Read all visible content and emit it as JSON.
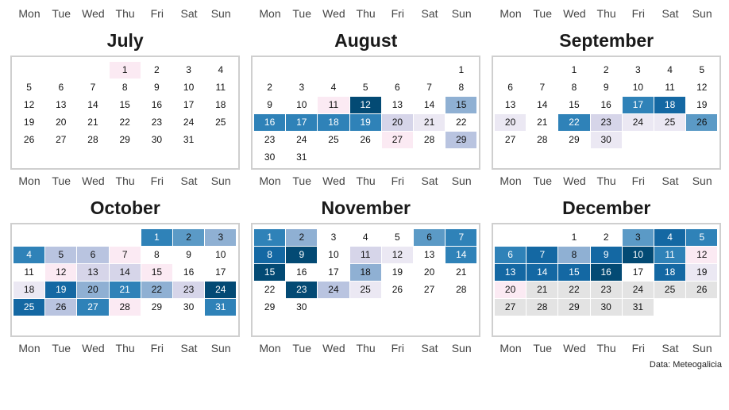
{
  "chart_data": {
    "type": "heatmap",
    "title": "",
    "source": "Data: Meteogalicia",
    "weekday_labels": [
      "Mon",
      "Tue",
      "Wed",
      "Thu",
      "Fri",
      "Sat",
      "Sun"
    ],
    "level_colors": {
      "0": "#ffffff",
      "1": "#fbeaf3",
      "2": "#ebe8f3",
      "3": "#d6d5e9",
      "4": "#b9c4e0",
      "5": "#8fb0d3",
      "6": "#5b9ac6",
      "7": "#2f82b8",
      "8": "#1468a3",
      "9": "#034a74",
      "na": "#e3e3e3"
    },
    "dark_text_levels": [
      7,
      8,
      9
    ],
    "months": [
      {
        "name": "July",
        "start_weekday": 3,
        "days": 31,
        "levels": [
          1,
          0,
          0,
          0,
          0,
          0,
          0,
          0,
          0,
          0,
          0,
          0,
          0,
          0,
          0,
          0,
          0,
          0,
          0,
          0,
          0,
          0,
          0,
          0,
          0,
          0,
          0,
          0,
          0,
          0,
          0
        ]
      },
      {
        "name": "August",
        "start_weekday": 6,
        "days": 31,
        "levels": [
          0,
          0,
          0,
          0,
          0,
          0,
          0,
          0,
          0,
          0,
          1,
          9,
          0,
          0,
          5,
          7,
          7,
          7,
          7,
          3,
          2,
          0,
          0,
          0,
          0,
          0,
          1,
          0,
          4,
          0,
          0
        ]
      },
      {
        "name": "September",
        "start_weekday": 2,
        "days": 30,
        "levels": [
          0,
          0,
          0,
          0,
          0,
          0,
          0,
          0,
          0,
          0,
          0,
          0,
          0,
          0,
          0,
          0,
          7,
          8,
          0,
          2,
          0,
          7,
          3,
          2,
          2,
          6,
          0,
          0,
          0,
          2
        ]
      },
      {
        "name": "October",
        "start_weekday": 4,
        "days": 31,
        "levels": [
          7,
          6,
          5,
          7,
          4,
          4,
          1,
          0,
          0,
          0,
          0,
          1,
          3,
          3,
          1,
          0,
          0,
          2,
          8,
          5,
          7,
          5,
          3,
          9,
          8,
          4,
          7,
          1,
          0,
          0,
          7
        ]
      },
      {
        "name": "November",
        "start_weekday": 0,
        "days": 30,
        "levels": [
          7,
          5,
          0,
          0,
          0,
          6,
          7,
          8,
          9,
          0,
          3,
          2,
          0,
          7,
          9,
          0,
          0,
          5,
          0,
          0,
          0,
          0,
          9,
          4,
          2,
          0,
          0,
          0,
          0,
          0
        ]
      },
      {
        "name": "December",
        "start_weekday": 2,
        "days": 31,
        "levels": [
          0,
          0,
          6,
          8,
          7,
          7,
          8,
          5,
          8,
          9,
          7,
          1,
          8,
          8,
          8,
          9,
          0,
          8,
          2,
          1,
          "na",
          "na",
          "na",
          "na",
          "na",
          "na",
          "na",
          "na",
          "na",
          "na",
          "na"
        ]
      }
    ]
  }
}
